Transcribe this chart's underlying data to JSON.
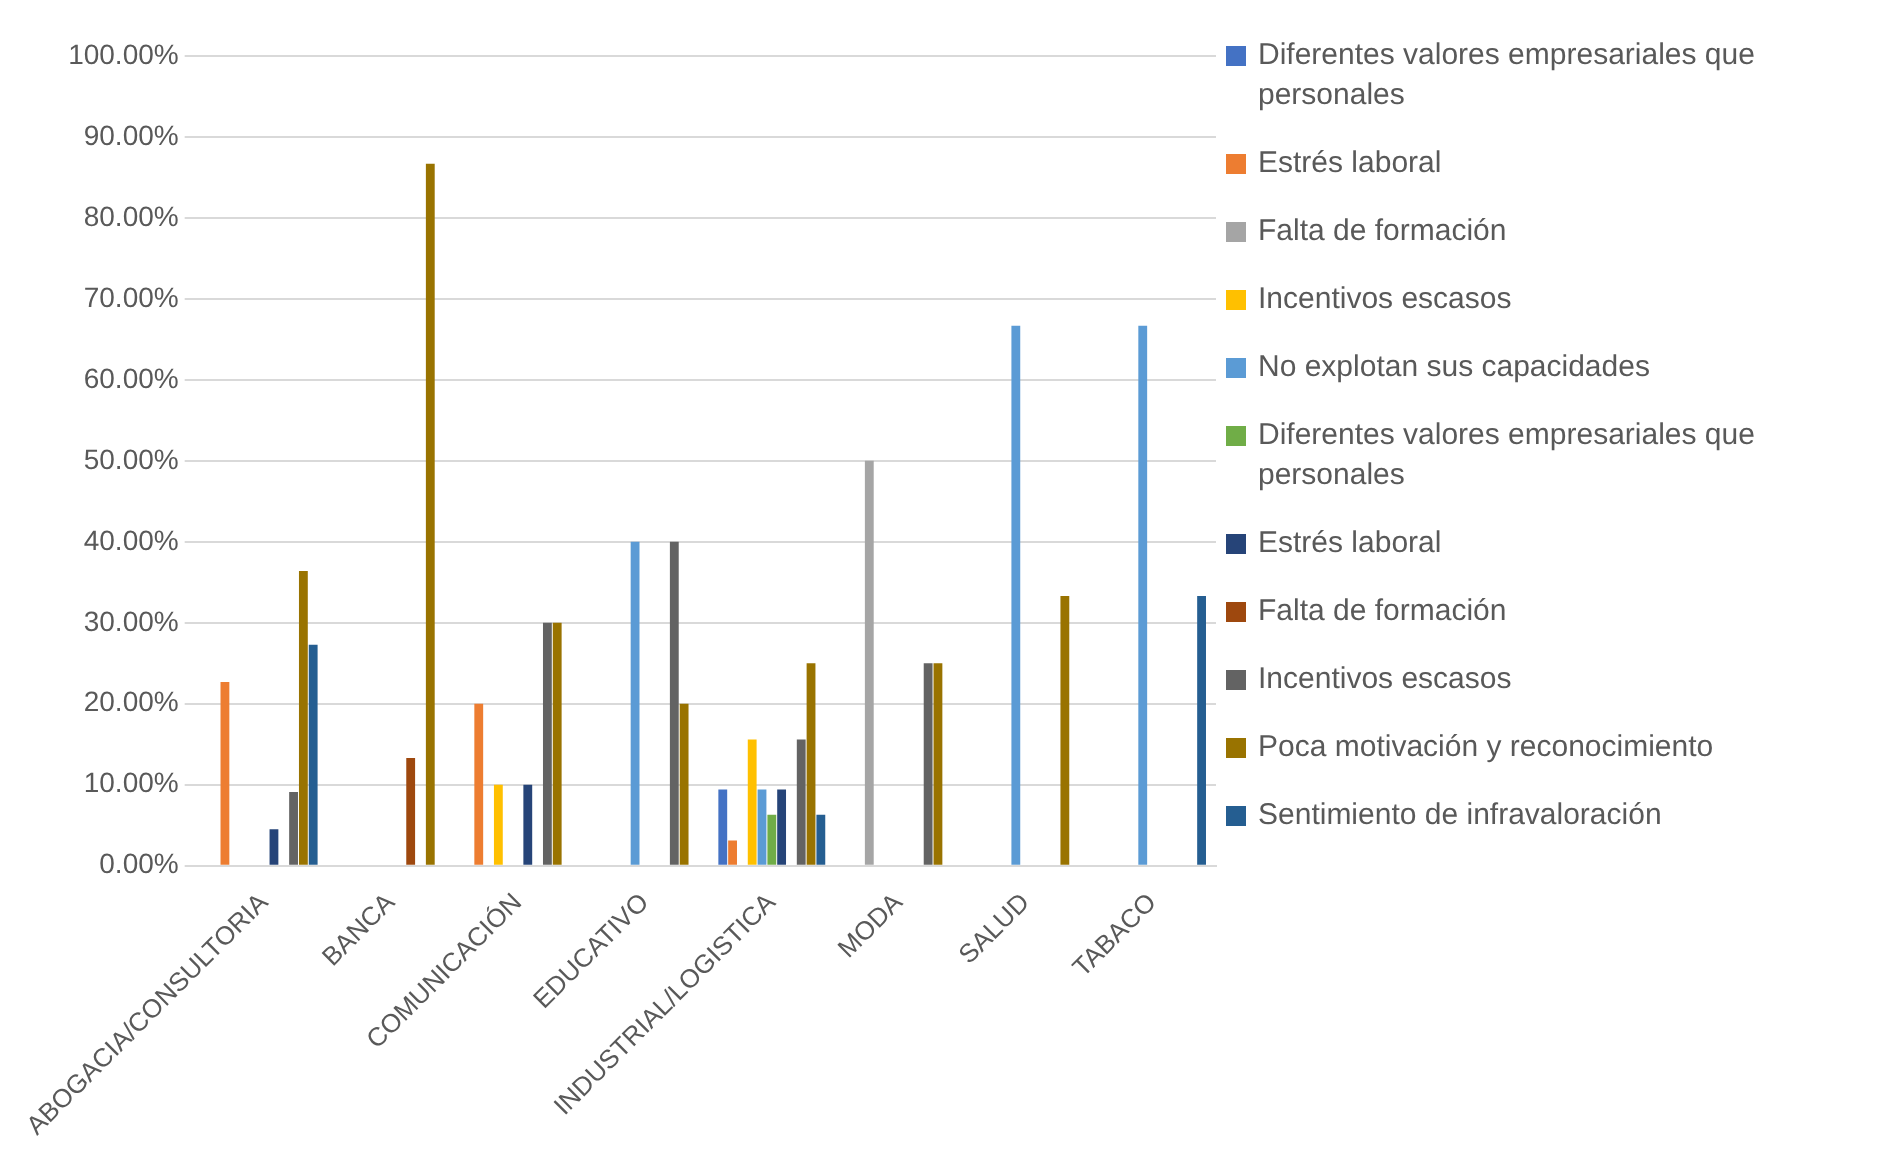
{
  "chart_data": {
    "type": "bar",
    "categories": [
      "ABOGACIA/CONSULTORIA",
      "BANCA",
      "COMUNICACIÓN",
      "EDUCATIVO",
      "INDUSTRIAL/LOGISTICA",
      "MODA",
      "SALUD",
      "TABACO"
    ],
    "series": [
      {
        "name": "Diferentes valores empresariales que personales",
        "color": "#4472c4",
        "values": [
          0,
          0,
          0,
          0,
          9.4,
          0,
          0,
          0
        ]
      },
      {
        "name": "Estrés laboral",
        "color": "#ed7d31",
        "values": [
          22.7,
          0,
          20,
          0,
          3.1,
          0,
          0,
          0
        ]
      },
      {
        "name": "Falta de formación",
        "color": "#a5a5a5",
        "values": [
          0,
          0,
          0,
          0,
          0,
          50,
          0,
          0
        ]
      },
      {
        "name": "Incentivos escasos",
        "color": "#ffc000",
        "values": [
          0,
          0,
          10,
          0,
          15.6,
          0,
          0,
          0
        ]
      },
      {
        "name": "No explotan sus capacidades",
        "color": "#5b9bd5",
        "values": [
          0,
          0,
          0,
          40,
          9.4,
          0,
          66.7,
          66.7
        ]
      },
      {
        "name": "Diferentes valores empresariales que personales",
        "color": "#70ad47",
        "values": [
          0,
          0,
          0,
          0,
          6.3,
          0,
          0,
          0
        ]
      },
      {
        "name": "Estrés laboral",
        "color": "#264478",
        "values": [
          4.5,
          0,
          10,
          0,
          9.4,
          0,
          0,
          0
        ]
      },
      {
        "name": "Falta de formación",
        "color": "#9e480e",
        "values": [
          0,
          13.3,
          0,
          0,
          0,
          0,
          0,
          0
        ]
      },
      {
        "name": "Incentivos escasos",
        "color": "#636363",
        "values": [
          9.1,
          0,
          30,
          40,
          15.6,
          25,
          0,
          0
        ]
      },
      {
        "name": "Poca motivación y reconocimiento",
        "color": "#997300",
        "values": [
          36.4,
          86.7,
          30,
          20,
          25,
          25,
          33.3,
          0
        ]
      },
      {
        "name": "Sentimiento de infravaloración",
        "color": "#255e91",
        "values": [
          27.3,
          0,
          0,
          0,
          6.3,
          0,
          0,
          33.3
        ]
      }
    ],
    "ylim": [
      0,
      100
    ],
    "yticks": [
      {
        "value": 0,
        "label": "0.00%"
      },
      {
        "value": 10,
        "label": "10.00%"
      },
      {
        "value": 20,
        "label": "20.00%"
      },
      {
        "value": 30,
        "label": "30.00%"
      },
      {
        "value": 40,
        "label": "40.00%"
      },
      {
        "value": 50,
        "label": "50.00%"
      },
      {
        "value": 60,
        "label": "60.00%"
      },
      {
        "value": 70,
        "label": "70.00%"
      },
      {
        "value": 80,
        "label": "80.00%"
      },
      {
        "value": 90,
        "label": "90.00%"
      },
      {
        "value": 100,
        "label": "100.00%"
      }
    ],
    "grid": "y",
    "legend": "right"
  }
}
